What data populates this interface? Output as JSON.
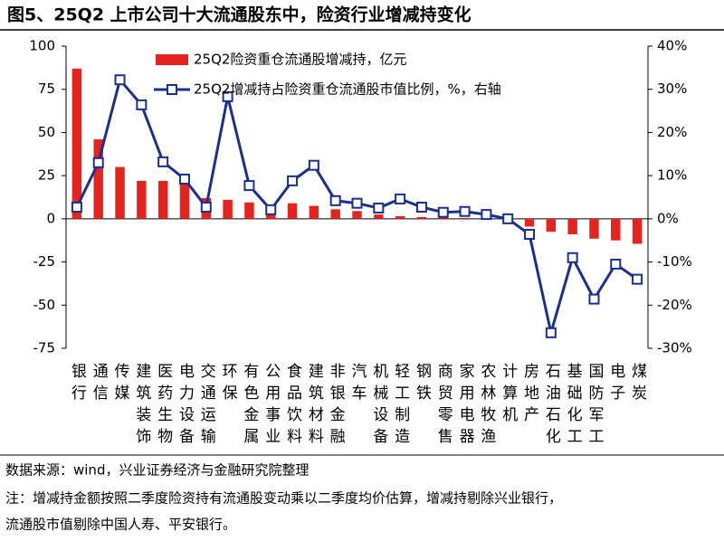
{
  "chart_data": {
    "type": "bar-line",
    "title": "图5、25Q2 上市公司十大流通股东中，险资行业增减持变化",
    "categories": [
      "银行",
      "通信",
      "传媒",
      "建筑装饰",
      "医药生物",
      "电力设备",
      "交通运输",
      "环保",
      "有色金属",
      "公用事业",
      "食品饮料",
      "建筑材料",
      "非银金融",
      "汽车",
      "机械设备",
      "轻工制造",
      "钢铁",
      "商贸零售",
      "家用电器",
      "农林牧渔",
      "计算机",
      "房地产",
      "石油石化",
      "基础化工",
      "国防军工",
      "电子",
      "煤炭"
    ],
    "series": [
      {
        "name": "25Q2险资重仓流通股增减持，亿元",
        "type": "bar",
        "color": "#e52420",
        "axis": "y",
        "values": [
          87,
          46,
          30,
          22,
          22,
          21,
          12,
          11,
          9.5,
          8,
          9,
          7.5,
          5.5,
          4.5,
          2.5,
          1.5,
          1,
          0.8,
          0.5,
          0.3,
          -0.5,
          -4.5,
          -7.5,
          -9,
          -11.5,
          -12.5,
          -14.5
        ]
      },
      {
        "name": "25Q2增减持占险资重仓流通股市值比例，%，右轴",
        "type": "line",
        "color": "#1c2f8c",
        "axis": "y2",
        "values": [
          2.7,
          13,
          32.2,
          26.4,
          13.2,
          9.2,
          2.7,
          28.3,
          7.7,
          2.1,
          8.8,
          12.4,
          4.2,
          3.6,
          2.5,
          4.6,
          2.7,
          1.5,
          1.7,
          1.0,
          0,
          -3.6,
          -26.4,
          -9,
          -18.6,
          -10.5,
          -14
        ]
      }
    ],
    "ylim": [
      -75,
      100
    ],
    "yticks": [
      100,
      75,
      50,
      25,
      0,
      -25,
      -50,
      -75
    ],
    "y2lim": [
      -30,
      40
    ],
    "y2ticks": [
      {
        "value": 40,
        "label": "40%"
      },
      {
        "value": 30,
        "label": "30%"
      },
      {
        "value": 20,
        "label": "20%"
      },
      {
        "value": 10,
        "label": "10%"
      },
      {
        "value": 0,
        "label": "0%"
      },
      {
        "value": -10,
        "label": "-10%"
      },
      {
        "value": -20,
        "label": "-20%"
      },
      {
        "value": -30,
        "label": "-30%"
      }
    ],
    "source": "数据来源：wind，兴业证券经济与金融研究院整理",
    "notes": [
      "注：增减持金额按照二季度险资持有流通股变动乘以二季度均价估算，增减持剔除兴业银行，",
      "流通股市值剔除中国人寿、平安银行。"
    ]
  }
}
